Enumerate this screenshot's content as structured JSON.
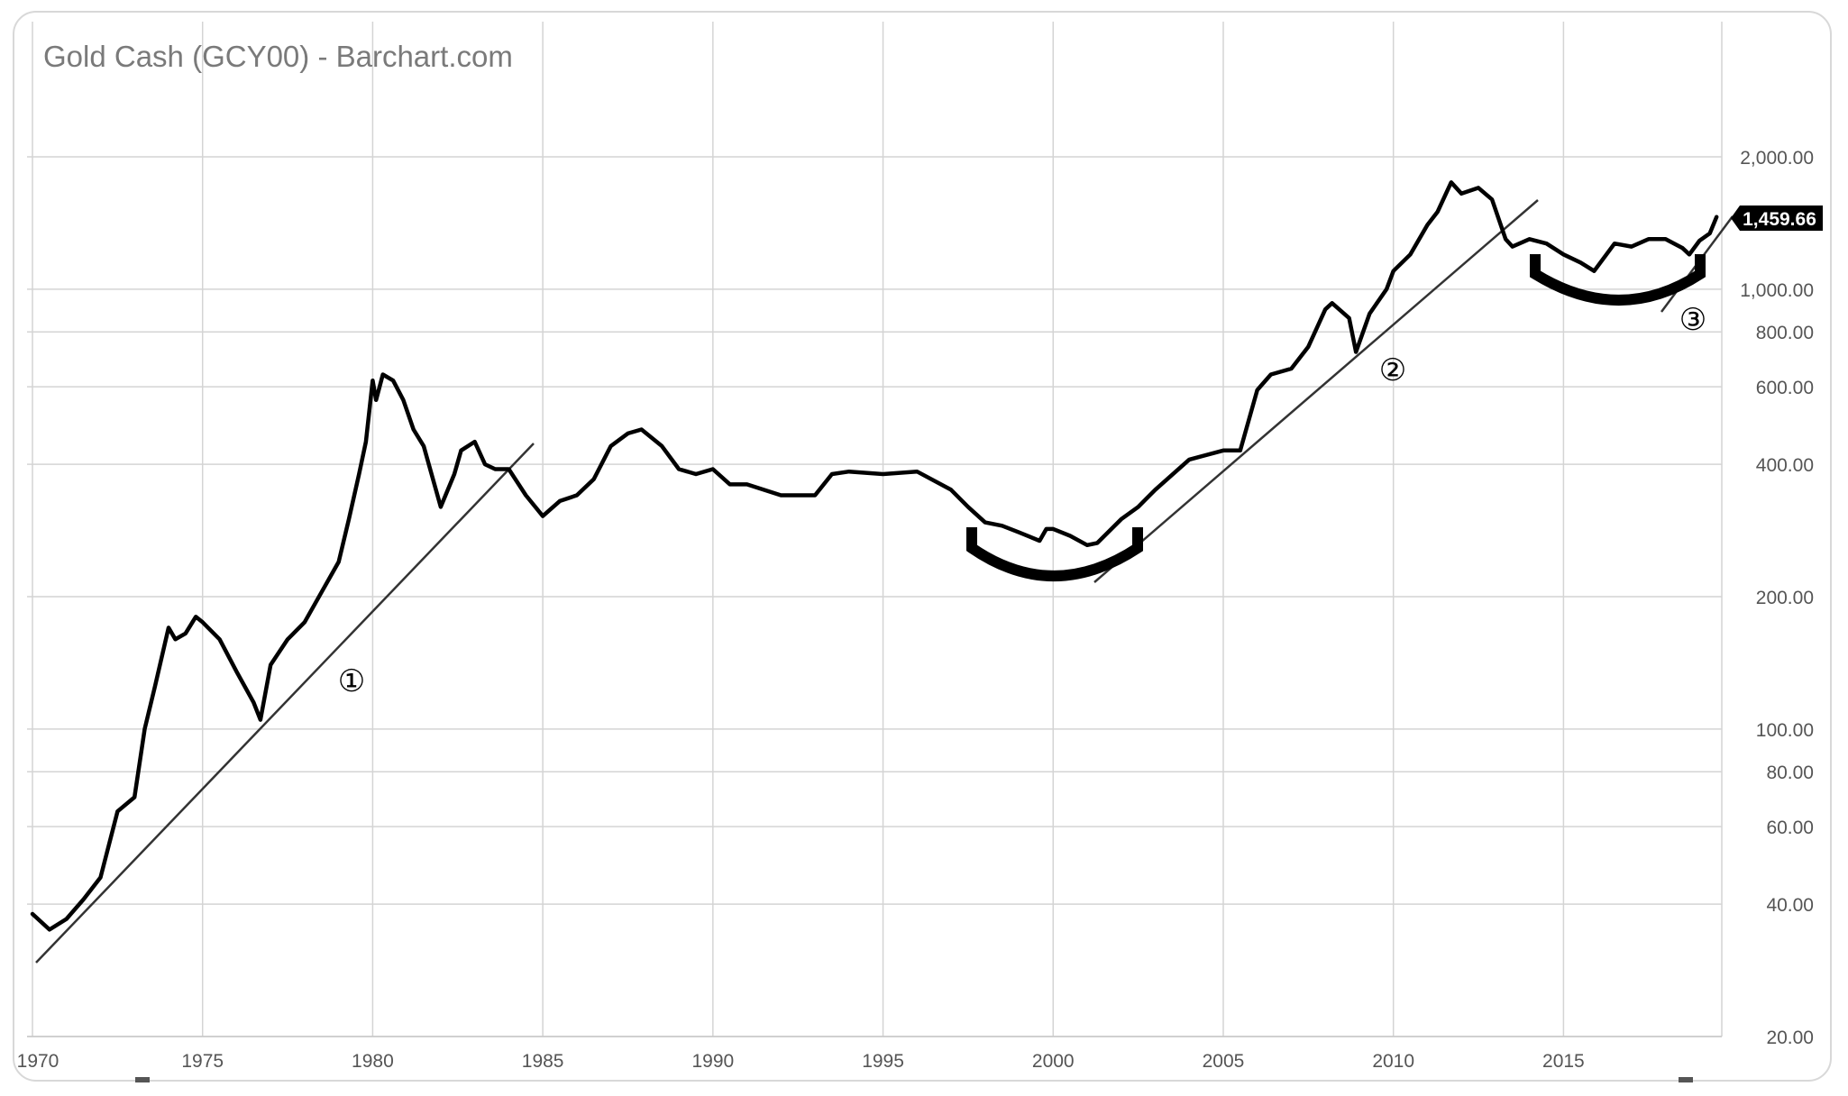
{
  "chart_data": {
    "type": "line",
    "title": "Gold Cash (GCY00) - Barchart.com",
    "y_scale": "log",
    "ylim": [
      20,
      2000
    ],
    "xlim": [
      1970,
      2019.6
    ],
    "x_ticks": [
      "1970",
      "1975",
      "1980",
      "1985",
      "1990",
      "1995",
      "2000",
      "2005",
      "2010",
      "2015"
    ],
    "y_ticks": [
      "2,000.00",
      "1,000.00",
      "800.00",
      "600.00",
      "400.00",
      "200.00",
      "100.00",
      "80.00",
      "60.00",
      "40.00",
      "20.00"
    ],
    "last_price_label": "1,459.66",
    "grid": true,
    "series": [
      {
        "x": [
          1970.0,
          1970.5,
          1971.0,
          1971.5,
          1972.0,
          1972.5,
          1973.0,
          1973.3,
          1973.6,
          1974.0,
          1974.2,
          1974.5,
          1974.8,
          1975.0,
          1975.5,
          1976.0,
          1976.5,
          1976.7,
          1977.0,
          1977.5,
          1978.0,
          1978.5,
          1979.0,
          1979.3,
          1979.6,
          1979.8,
          1980.0,
          1980.1,
          1980.3,
          1980.6,
          1980.9,
          1981.2,
          1981.5,
          1982.0,
          1982.4,
          1982.6,
          1983.0,
          1983.3,
          1983.6,
          1984.0,
          1984.5,
          1985.0,
          1985.5,
          1986.0,
          1986.5,
          1987.0,
          1987.5,
          1987.9,
          1988.5,
          1989.0,
          1989.5,
          1990.0,
          1990.5,
          1991.0,
          1992.0,
          1993.0,
          1993.5,
          1994.0,
          1995.0,
          1996.0,
          1997.0,
          1997.5,
          1998.0,
          1998.5,
          1999.0,
          1999.6,
          1999.8,
          2000.0,
          2000.5,
          2001.0,
          2001.3,
          2002.0,
          2002.5,
          2003.0,
          2004.0,
          2005.0,
          2005.5,
          2006.0,
          2006.4,
          2007.0,
          2007.5,
          2008.0,
          2008.2,
          2008.7,
          2008.9,
          2009.3,
          2009.8,
          2010.0,
          2010.5,
          2011.0,
          2011.3,
          2011.7,
          2012.0,
          2012.5,
          2012.9,
          2013.3,
          2013.5,
          2014.0,
          2014.5,
          2015.0,
          2015.5,
          2015.9,
          2016.5,
          2017.0,
          2017.5,
          2018.0,
          2018.5,
          2018.7,
          2019.0,
          2019.3,
          2019.5
        ],
        "y": [
          38,
          35,
          37,
          41,
          46,
          65,
          70,
          100,
          125,
          170,
          160,
          165,
          180,
          175,
          160,
          135,
          115,
          105,
          140,
          160,
          175,
          205,
          240,
          300,
          380,
          450,
          620,
          560,
          640,
          620,
          560,
          480,
          440,
          320,
          380,
          430,
          450,
          400,
          390,
          390,
          340,
          305,
          330,
          340,
          370,
          440,
          470,
          480,
          440,
          390,
          380,
          390,
          360,
          360,
          340,
          340,
          380,
          385,
          380,
          385,
          350,
          320,
          295,
          290,
          280,
          268,
          285,
          285,
          275,
          262,
          265,
          300,
          320,
          350,
          410,
          430,
          430,
          590,
          640,
          660,
          740,
          900,
          930,
          860,
          720,
          880,
          1000,
          1100,
          1200,
          1400,
          1500,
          1750,
          1650,
          1700,
          1600,
          1300,
          1250,
          1300,
          1270,
          1200,
          1150,
          1100,
          1270,
          1250,
          1300,
          1300,
          1240,
          1200,
          1290,
          1340,
          1459.66
        ]
      }
    ],
    "annotations": [
      "①",
      "②",
      "③"
    ]
  }
}
